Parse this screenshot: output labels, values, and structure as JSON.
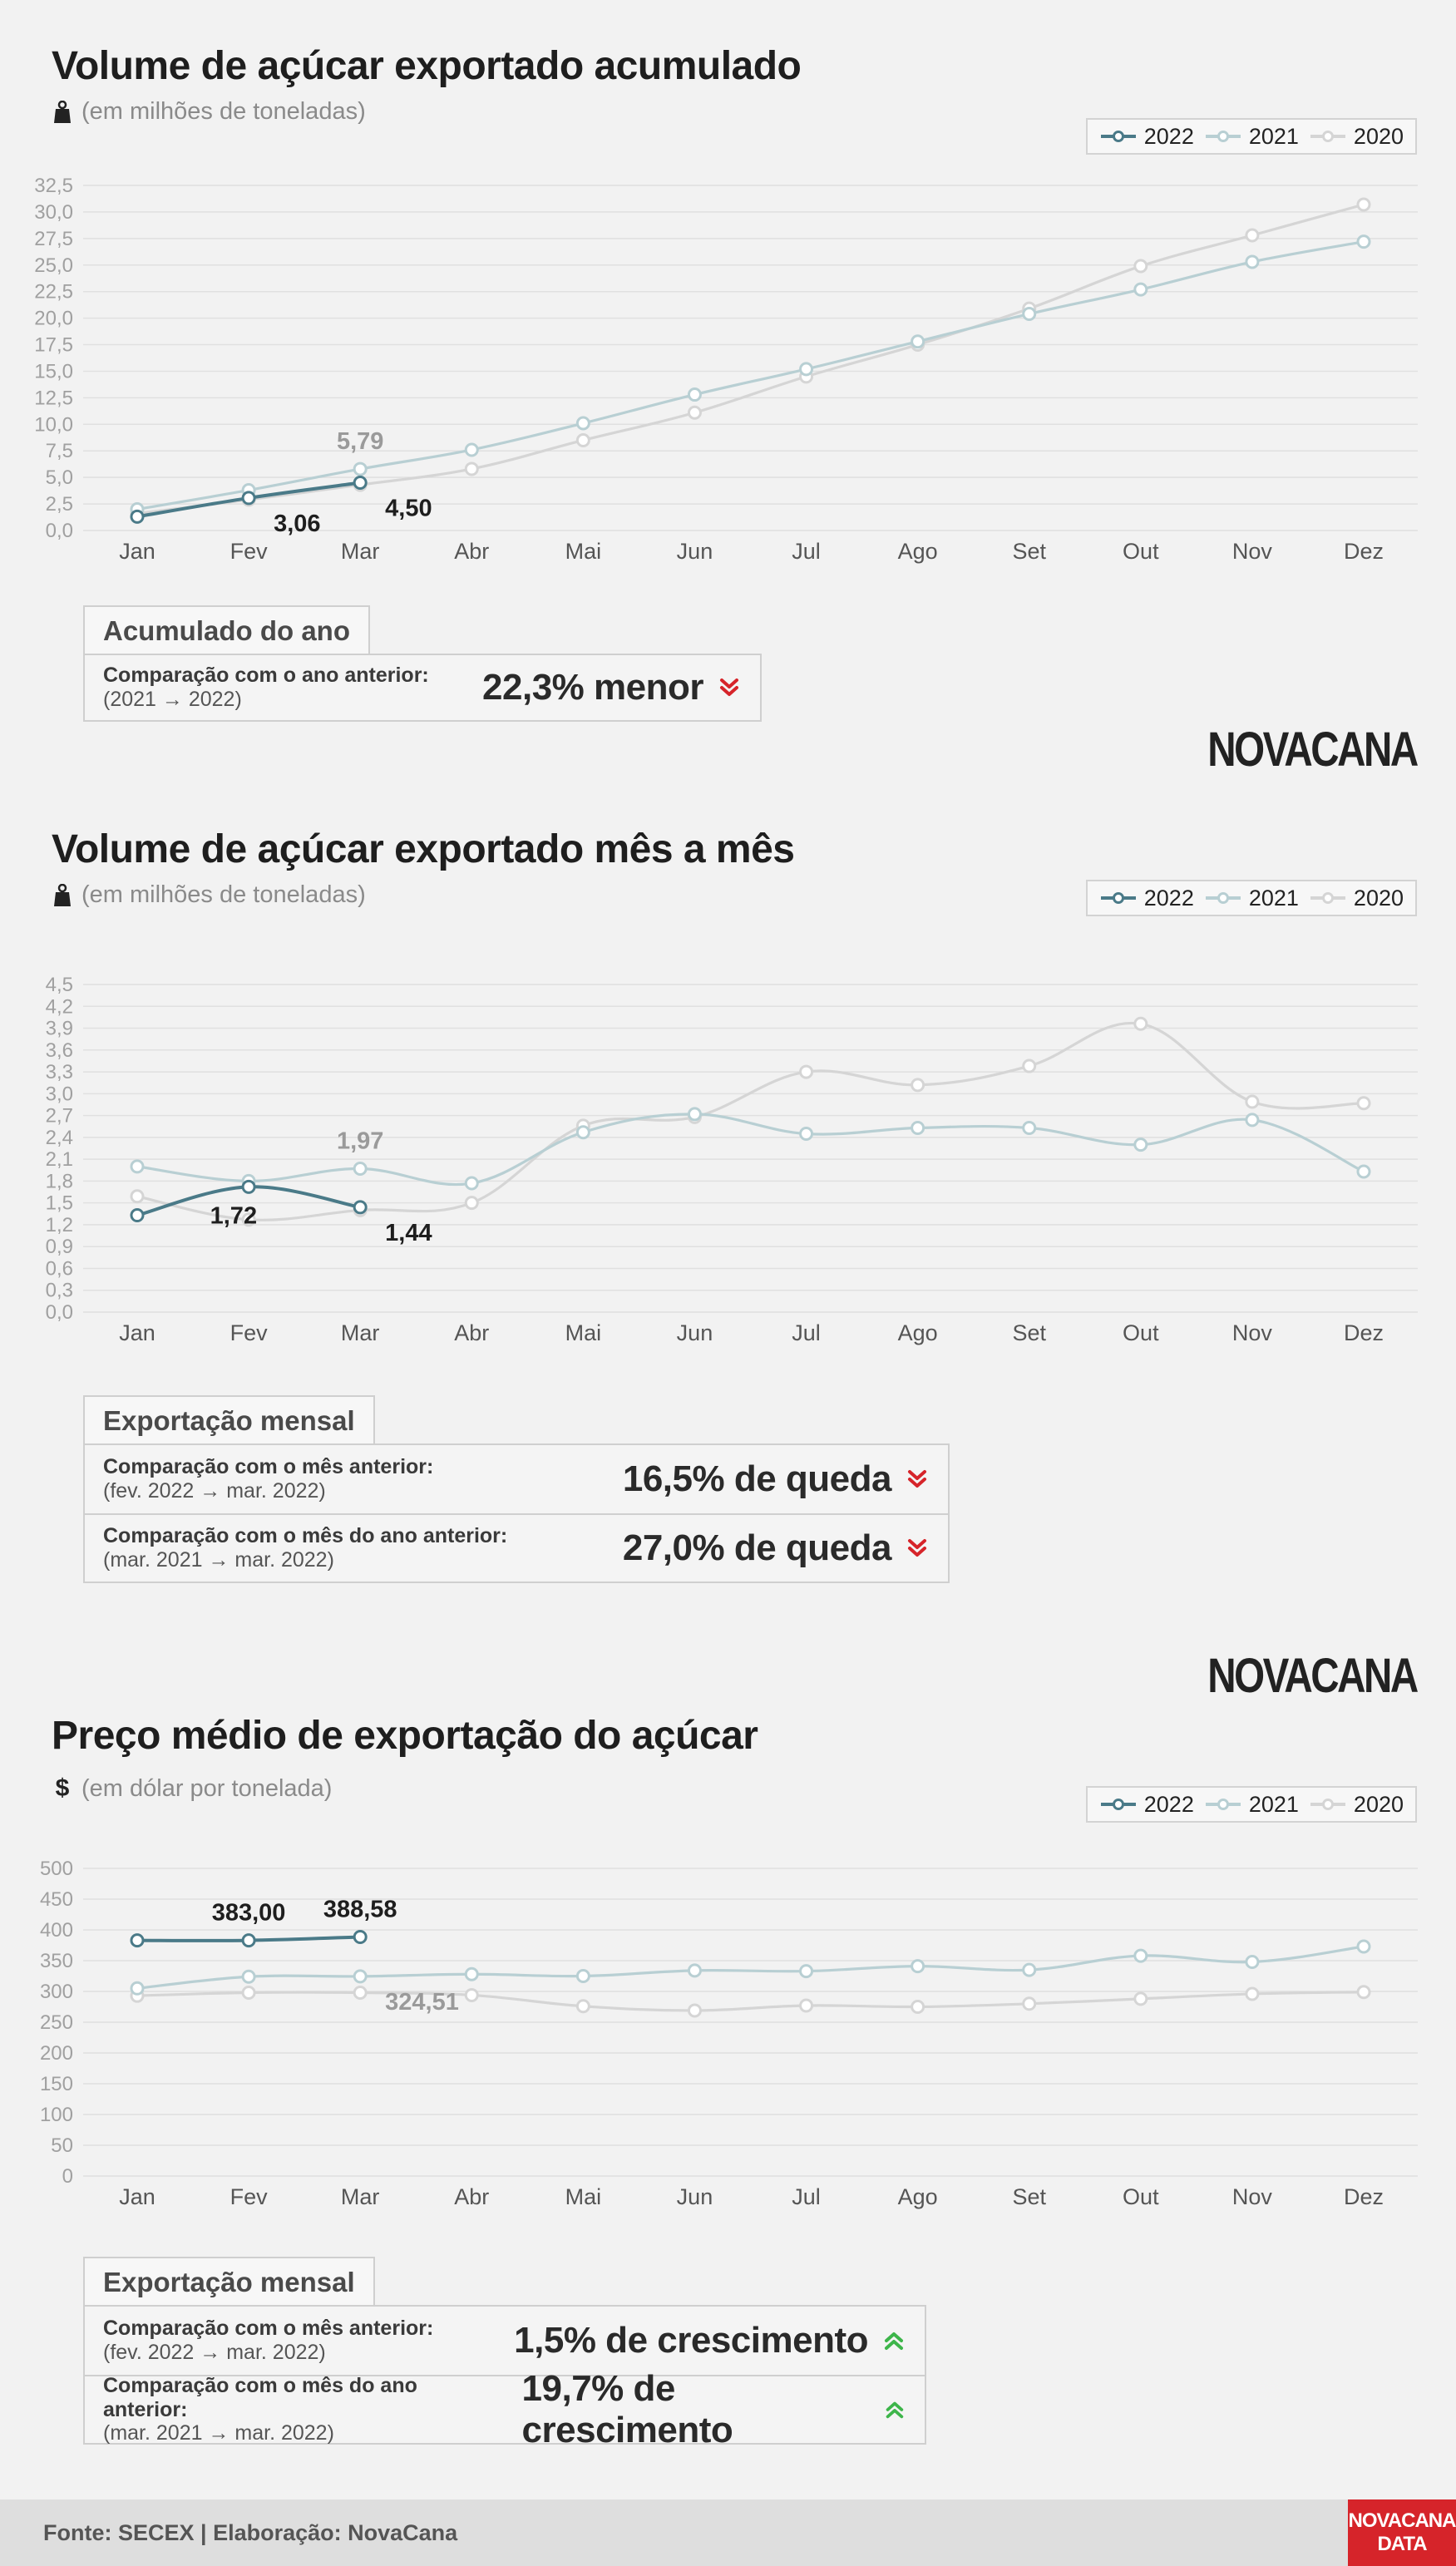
{
  "months": [
    "Jan",
    "Fev",
    "Mar",
    "Abr",
    "Mai",
    "Jun",
    "Jul",
    "Ago",
    "Set",
    "Out",
    "Nov",
    "Dez"
  ],
  "legend": [
    "2022",
    "2021",
    "2020"
  ],
  "colors": {
    "y2022": "#4a7a88",
    "y2021": "#b8cfd3",
    "y2020": "#d5d5d5",
    "down": "#d6242a",
    "up": "#3db54a"
  },
  "brand": "NOVACANA",
  "footer": {
    "source": "Fonte: SECEX | Elaboração: NovaCana",
    "badge_line1": "NOVACANA",
    "badge_line2": "DATA"
  },
  "section1": {
    "title": "Volume de açúcar exportado acumulado",
    "subtitle": "(em milhões de toneladas)",
    "unit_icon": "weight-icon",
    "box_title": "Acumulado do ano",
    "rows": [
      {
        "label": "Comparação com o ano anterior:",
        "sub": "(2021 → 2022)",
        "value": "22,3% menor",
        "direction": "down"
      }
    ]
  },
  "section2": {
    "title": "Volume de açúcar exportado mês a mês",
    "subtitle": "(em milhões de toneladas)",
    "unit_icon": "weight-icon",
    "box_title": "Exportação mensal",
    "rows": [
      {
        "label": "Comparação com o mês anterior:",
        "sub": "(fev. 2022 → mar. 2022)",
        "value": "16,5% de queda",
        "direction": "down"
      },
      {
        "label": "Comparação com o mês do ano anterior:",
        "sub": "(mar. 2021 → mar. 2022)",
        "value": "27,0% de queda",
        "direction": "down"
      }
    ]
  },
  "section3": {
    "title": "Preço médio de exportação do açúcar",
    "subtitle": "(em dólar por tonelada)",
    "unit_icon": "dollar-icon",
    "unit_symbol": "$",
    "box_title": "Exportação mensal",
    "rows": [
      {
        "label": "Comparação com o mês anterior:",
        "sub": "(fev. 2022 → mar. 2022)",
        "value": "1,5% de crescimento",
        "direction": "up"
      },
      {
        "label": "Comparação com o mês do ano anterior:",
        "sub": "(mar. 2021 → mar. 2022)",
        "value": "19,7% de crescimento",
        "direction": "up"
      }
    ]
  },
  "chart_data": [
    {
      "type": "line",
      "title": "Volume de açúcar exportado acumulado",
      "subtitle": "(em milhões de toneladas)",
      "x": [
        "Jan",
        "Fev",
        "Mar",
        "Abr",
        "Mai",
        "Jun",
        "Jul",
        "Ago",
        "Set",
        "Out",
        "Nov",
        "Dez"
      ],
      "ylim": [
        0,
        32.5
      ],
      "yticks": [
        "0,0",
        "2,5",
        "5,0",
        "7,5",
        "10,0",
        "12,5",
        "15,0",
        "17,5",
        "20,0",
        "22,5",
        "25,0",
        "27,5",
        "30,0",
        "32,5"
      ],
      "grid": true,
      "legend_position": "top-right",
      "series": [
        {
          "name": "2020",
          "values": [
            1.6,
            2.9,
            4.3,
            5.8,
            8.5,
            11.1,
            14.5,
            17.5,
            20.9,
            24.9,
            27.8,
            30.7
          ]
        },
        {
          "name": "2021",
          "values": [
            2.0,
            3.8,
            5.79,
            7.6,
            10.1,
            12.8,
            15.2,
            17.8,
            20.4,
            22.7,
            25.3,
            27.2
          ]
        },
        {
          "name": "2022",
          "values": [
            1.3,
            3.06,
            4.5
          ]
        }
      ],
      "labels": [
        {
          "series": "2021",
          "index": 2,
          "text": "5,79",
          "pos": "above"
        },
        {
          "series": "2022",
          "index": 1,
          "text": "3,06",
          "pos": "below-right"
        },
        {
          "series": "2022",
          "index": 2,
          "text": "4,50",
          "pos": "below-right"
        }
      ]
    },
    {
      "type": "line",
      "title": "Volume de açúcar exportado mês a mês",
      "subtitle": "(em milhões de toneladas)",
      "x": [
        "Jan",
        "Fev",
        "Mar",
        "Abr",
        "Mai",
        "Jun",
        "Jul",
        "Ago",
        "Set",
        "Out",
        "Nov",
        "Dez"
      ],
      "ylim": [
        0,
        4.5
      ],
      "yticks": [
        "0,0",
        "0,3",
        "0,6",
        "0,9",
        "1,2",
        "1,5",
        "1,8",
        "2,1",
        "2,4",
        "2,7",
        "3,0",
        "3,3",
        "3,6",
        "3,9",
        "4,2",
        "4,5"
      ],
      "grid": true,
      "legend_position": "top-right",
      "series": [
        {
          "name": "2020",
          "values": [
            1.59,
            1.27,
            1.4,
            1.5,
            2.56,
            2.68,
            3.3,
            3.12,
            3.38,
            3.96,
            2.89,
            2.87
          ]
        },
        {
          "name": "2021",
          "values": [
            2.0,
            1.8,
            1.97,
            1.77,
            2.47,
            2.72,
            2.45,
            2.53,
            2.53,
            2.3,
            2.64,
            1.93
          ]
        },
        {
          "name": "2022",
          "values": [
            1.33,
            1.72,
            1.44
          ]
        }
      ],
      "labels": [
        {
          "series": "2021",
          "index": 2,
          "text": "1,97",
          "pos": "above"
        },
        {
          "series": "2022",
          "index": 1,
          "text": "1,72",
          "pos": "below-left"
        },
        {
          "series": "2022",
          "index": 2,
          "text": "1,44",
          "pos": "below-right"
        }
      ]
    },
    {
      "type": "line",
      "title": "Preço médio de exportação do açúcar",
      "subtitle": "(em dólar por tonelada)",
      "x": [
        "Jan",
        "Fev",
        "Mar",
        "Abr",
        "Mai",
        "Jun",
        "Jul",
        "Ago",
        "Set",
        "Out",
        "Nov",
        "Dez"
      ],
      "ylim": [
        0,
        500
      ],
      "yticks": [
        "0",
        "50",
        "100",
        "150",
        "200",
        "250",
        "300",
        "350",
        "400",
        "450",
        "500"
      ],
      "grid": true,
      "legend_position": "top-right",
      "series": [
        {
          "name": "2020",
          "values": [
            293,
            298,
            298,
            294,
            276,
            269,
            277,
            275,
            280,
            288,
            296,
            299
          ]
        },
        {
          "name": "2021",
          "values": [
            305,
            324,
            324.51,
            328,
            325,
            334,
            333,
            341,
            335,
            358,
            348,
            373
          ]
        },
        {
          "name": "2022",
          "values": [
            383,
            383.0,
            388.58
          ]
        }
      ],
      "labels": [
        {
          "series": "2021",
          "index": 2,
          "text": "324,51",
          "pos": "below-right"
        },
        {
          "series": "2022",
          "index": 1,
          "text": "383,00",
          "pos": "above"
        },
        {
          "series": "2022",
          "index": 2,
          "text": "388,58",
          "pos": "above"
        }
      ]
    }
  ]
}
